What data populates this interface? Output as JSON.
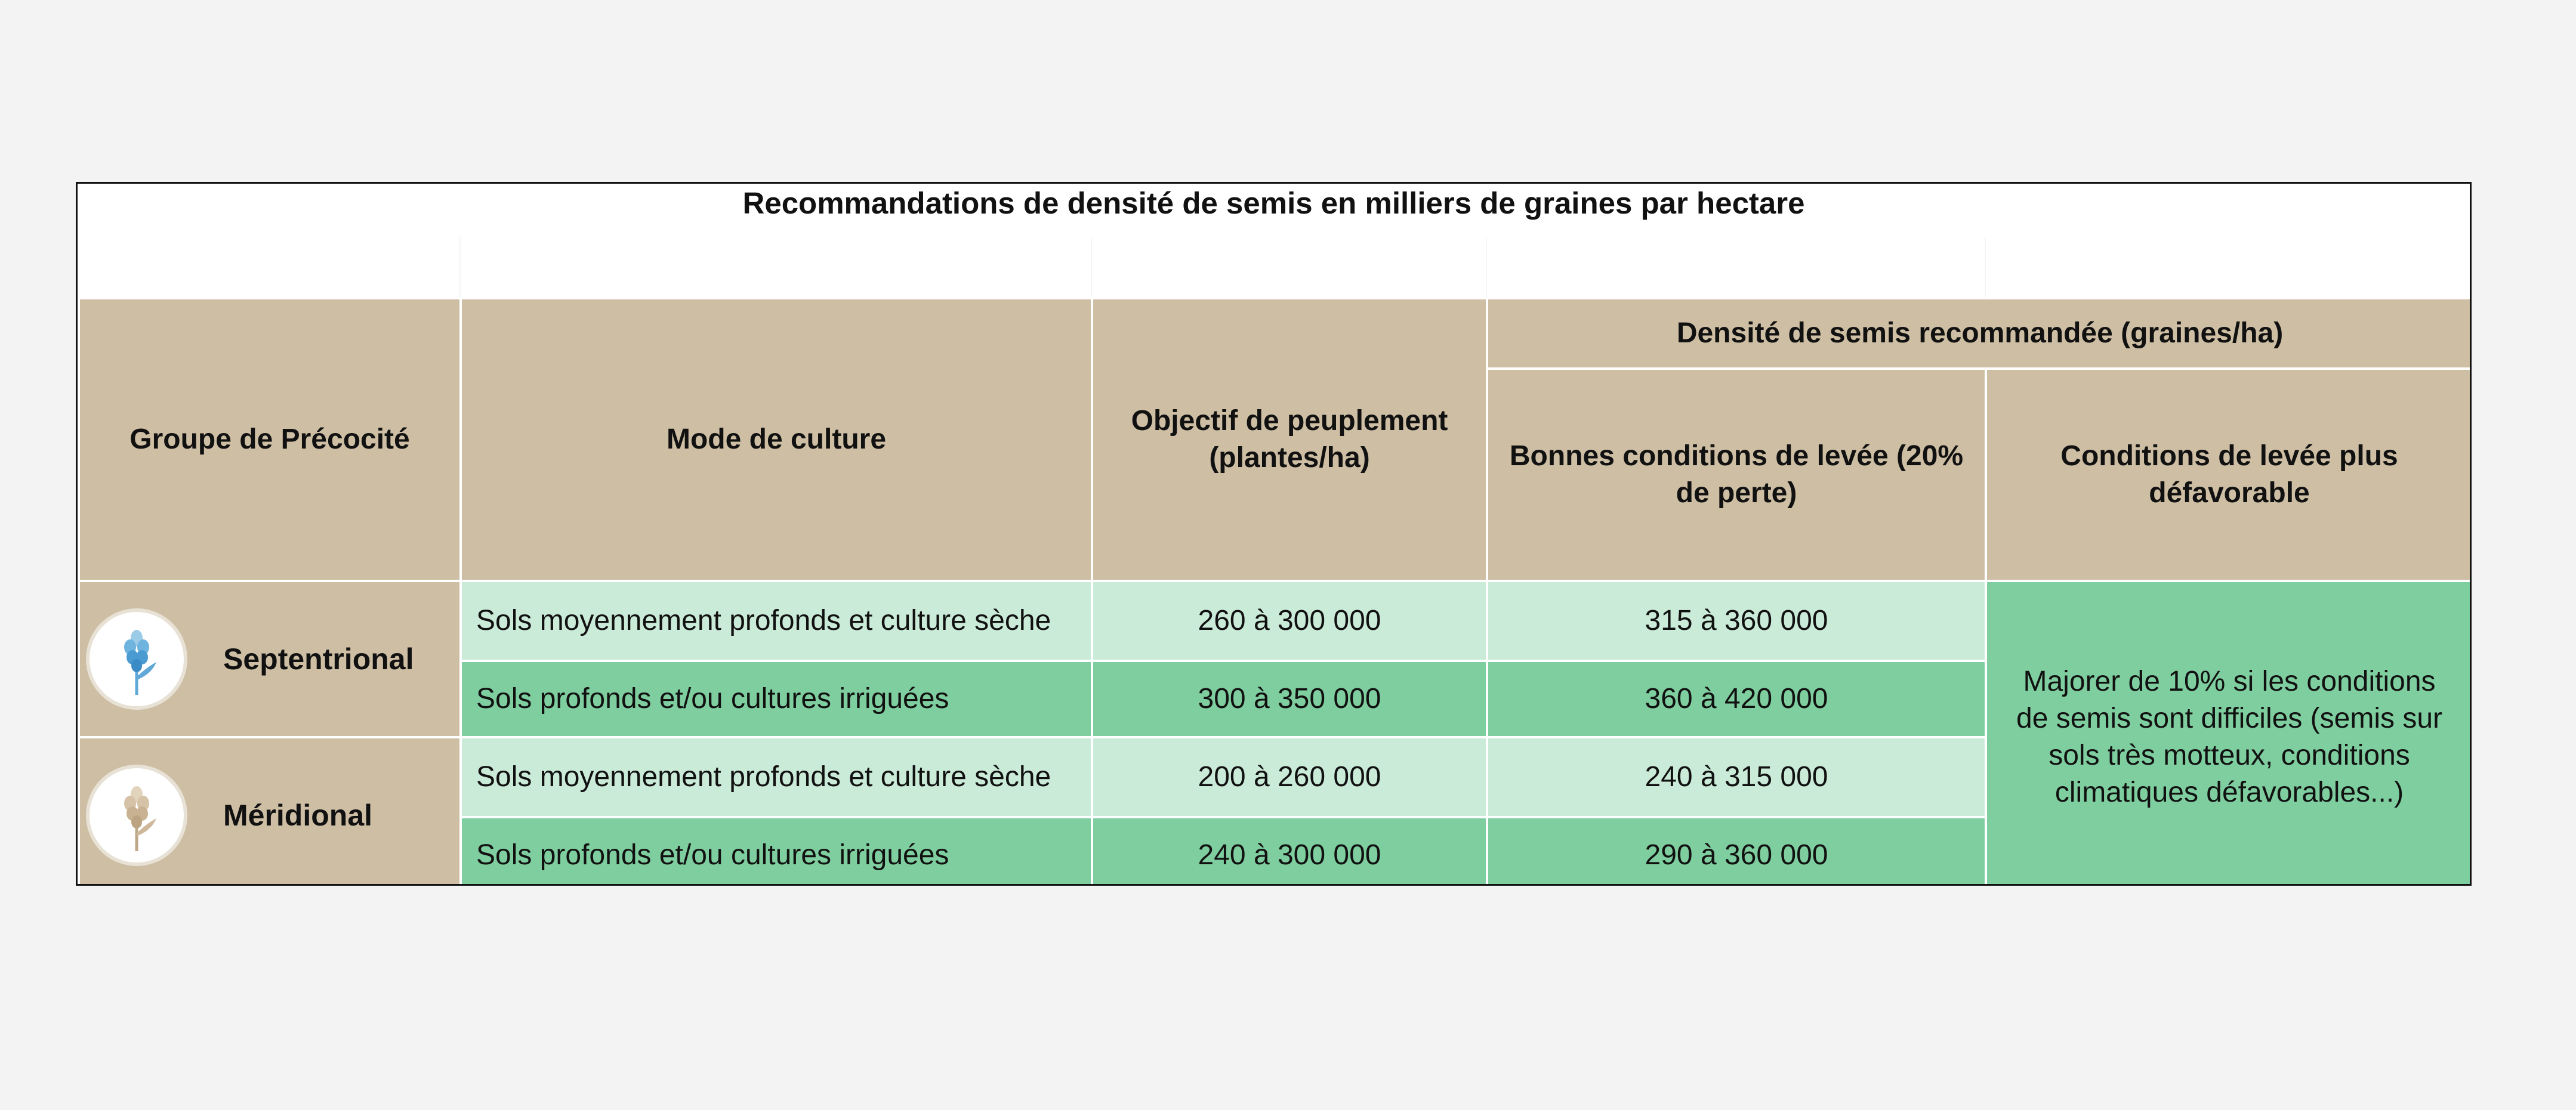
{
  "title": "Recommandations de densité de semis en milliers de graines par hectare",
  "headers": {
    "group": "Groupe de Précocité",
    "mode": "Mode de culture",
    "objective": "Objectif de peuplement (plantes/ha)",
    "density_group": "Densité de semis recommandée (graines/ha)",
    "good": "Bonnes conditions de levée (20% de perte)",
    "bad": "Conditions de levée plus défavorable"
  },
  "groups": [
    {
      "name": "Septentrional",
      "icon": "blue-flower-icon",
      "color": "#5fa8d8",
      "rows": [
        {
          "mode": "Sols moyennement profonds et culture sèche",
          "objective": "260 à 300 000",
          "good": "315 à 360 000"
        },
        {
          "mode": "Sols profonds et/ou cultures irriguées",
          "objective": "300 à 350 000",
          "good": "360 à 420 000"
        }
      ]
    },
    {
      "name": "Méridional",
      "icon": "beige-flower-icon",
      "color": "#cfb89a",
      "rows": [
        {
          "mode": "Sols moyennement profonds et culture sèche",
          "objective": "200 à 260 000",
          "good": "240 à 315 000"
        },
        {
          "mode": "Sols profonds et/ou cultures irriguées",
          "objective": "240 à 300 000",
          "good": "290 à 360 000"
        }
      ]
    }
  ],
  "note": "Majorer de 10% si les conditions de semis sont difficiles (semis sur sols très motteux, conditions climatiques défavorables...)"
}
